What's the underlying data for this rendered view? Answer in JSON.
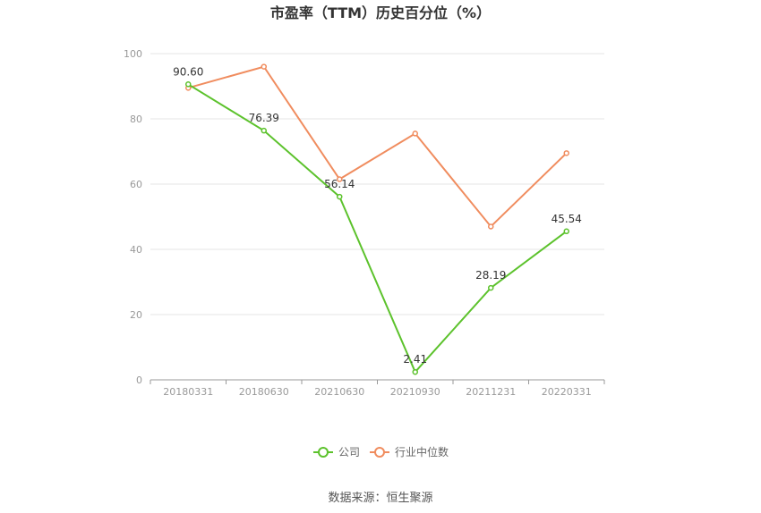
{
  "chart_data": {
    "type": "line",
    "title": "市盈率（TTM）历史百分位（%）",
    "categories": [
      "20180331",
      "20180630",
      "20210630",
      "20210930",
      "20211231",
      "20220331"
    ],
    "ylim": [
      0,
      100
    ],
    "yticks": [
      "0",
      "20",
      "40",
      "60",
      "80",
      "100"
    ],
    "grid": true,
    "legend_position": "bottom",
    "series": [
      {
        "name": "公司",
        "color": "#5cc22c",
        "values": [
          90.6,
          76.39,
          56.14,
          2.41,
          28.19,
          45.54
        ],
        "labels": [
          "90.60",
          "76.39",
          "56.14",
          "2.41",
          "28.19",
          "45.54"
        ]
      },
      {
        "name": "行业中位数",
        "color": "#f08c5e",
        "values": [
          89.5,
          96.0,
          61.5,
          75.5,
          47.0,
          69.5
        ]
      }
    ]
  },
  "source": "数据来源：恒生聚源"
}
